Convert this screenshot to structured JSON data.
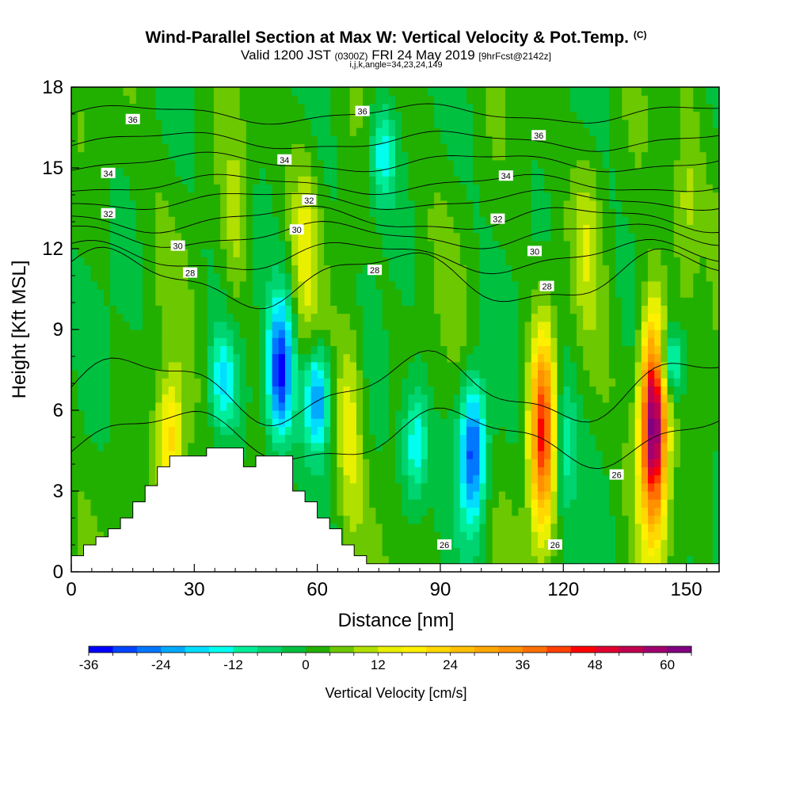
{
  "header": {
    "title": "Wind-Parallel Section at Max W: Vertical Velocity & Pot.Temp.",
    "title_mark": "(C)",
    "valid_prefix": "Valid 1200 JST",
    "valid_zulu": "(0300Z)",
    "valid_date": "FRI 24 May 2019",
    "forecast_note": "[9hrFcst@2142z]",
    "indices": "i,j,k,angle=34,23,24,149"
  },
  "chart_data": {
    "type": "heatmap",
    "xlabel": "Distance [nm]",
    "ylabel": "Height [Kft MSL]",
    "xlim": [
      0,
      158
    ],
    "ylim": [
      0,
      18
    ],
    "x_ticks": [
      "0",
      "30",
      "60",
      "90",
      "120",
      "150"
    ],
    "y_ticks": [
      "0",
      "3",
      "6",
      "9",
      "12",
      "15",
      "18"
    ],
    "colorbar": {
      "label": "Vertical Velocity [cm/s]",
      "range": [
        -36,
        64
      ],
      "step": 4,
      "tick_labels": [
        "-36",
        "-24",
        "-12",
        "0",
        "12",
        "24",
        "36",
        "48",
        "60"
      ],
      "colors": [
        "#0000ff",
        "#0044ff",
        "#0077ff",
        "#00aaff",
        "#00ddff",
        "#00ffee",
        "#00ee99",
        "#00d470",
        "#00c040",
        "#22b000",
        "#6cc800",
        "#b0e000",
        "#e8f000",
        "#fff000",
        "#ffd800",
        "#ffc000",
        "#ffa800",
        "#ff9000",
        "#ff7000",
        "#ff4000",
        "#ff0000",
        "#e00030",
        "#c00050",
        "#a00070",
        "#800080"
      ]
    },
    "updrafts": [
      {
        "x": 24,
        "bottom": 1.6,
        "top": 7.8,
        "peak": 22
      },
      {
        "x": 68,
        "bottom": 0.4,
        "top": 11.0,
        "peak": 12
      },
      {
        "x": 115,
        "bottom": 0.4,
        "top": 10.0,
        "peak": 44
      },
      {
        "x": 142,
        "bottom": 0.6,
        "top": 10.5,
        "peak": 64
      },
      {
        "x": 40,
        "bottom": 8.0,
        "top": 18.0,
        "peak": 8
      },
      {
        "x": 57,
        "bottom": 7.0,
        "top": 17.5,
        "peak": 9
      },
      {
        "x": 126,
        "bottom": 8.0,
        "top": 17.0,
        "peak": 7
      },
      {
        "x": 150,
        "bottom": 9.0,
        "top": 18.0,
        "peak": 9
      }
    ],
    "downdrafts": [
      {
        "x": 51,
        "bottom": 4.0,
        "top": 11.0,
        "peak": -36
      },
      {
        "x": 60,
        "bottom": 4.0,
        "top": 9.0,
        "peak": -28
      },
      {
        "x": 98,
        "bottom": 1.0,
        "top": 8.0,
        "peak": -32
      },
      {
        "x": 84,
        "bottom": 2.0,
        "top": 7.5,
        "peak": -18
      },
      {
        "x": 120,
        "bottom": 1.0,
        "top": 8.5,
        "peak": -14
      },
      {
        "x": 37,
        "bottom": 4.5,
        "top": 9.5,
        "peak": -16
      },
      {
        "x": 146,
        "bottom": 6.0,
        "top": 9.5,
        "peak": -20
      },
      {
        "x": 76,
        "bottom": 13.0,
        "top": 18.0,
        "peak": -16
      }
    ],
    "terrain": [
      [
        0,
        0.6
      ],
      [
        3,
        0.6
      ],
      [
        3,
        1.0
      ],
      [
        6,
        1.0
      ],
      [
        6,
        1.3
      ],
      [
        9,
        1.3
      ],
      [
        9,
        1.6
      ],
      [
        12,
        1.6
      ],
      [
        12,
        2.0
      ],
      [
        15,
        2.0
      ],
      [
        15,
        2.6
      ],
      [
        18,
        2.6
      ],
      [
        18,
        3.2
      ],
      [
        21,
        3.2
      ],
      [
        21,
        3.9
      ],
      [
        24,
        3.9
      ],
      [
        24,
        4.3
      ],
      [
        33,
        4.3
      ],
      [
        33,
        4.6
      ],
      [
        42,
        4.6
      ],
      [
        42,
        3.9
      ],
      [
        45,
        3.9
      ],
      [
        45,
        4.3
      ],
      [
        54,
        4.3
      ],
      [
        54,
        3.0
      ],
      [
        57,
        3.0
      ],
      [
        57,
        2.6
      ],
      [
        60,
        2.6
      ],
      [
        60,
        2.0
      ],
      [
        63,
        2.0
      ],
      [
        63,
        1.6
      ],
      [
        66,
        1.6
      ],
      [
        66,
        1.0
      ],
      [
        69,
        1.0
      ],
      [
        69,
        0.6
      ],
      [
        72,
        0.6
      ],
      [
        72,
        0.3
      ],
      [
        158,
        0.3
      ]
    ],
    "theta_levels": [
      {
        "value": 26,
        "base": 5.0,
        "amp": 0.9
      },
      {
        "value": 27,
        "base": 6.8,
        "amp": 1.1
      },
      {
        "value": 28,
        "base": 10.9,
        "amp": 0.9
      },
      {
        "value": 29,
        "base": 11.7,
        "amp": 0.5
      },
      {
        "value": 30,
        "base": 12.5,
        "amp": 0.4
      },
      {
        "value": 31,
        "base": 13.1,
        "amp": 0.4
      },
      {
        "value": 32,
        "base": 13.8,
        "amp": 0.3
      },
      {
        "value": 33,
        "base": 14.4,
        "amp": 0.3
      },
      {
        "value": 34,
        "base": 15.2,
        "amp": 0.3
      },
      {
        "value": 35,
        "base": 16.0,
        "amp": 0.3
      },
      {
        "value": 36,
        "base": 17.0,
        "amp": 0.3
      }
    ],
    "contour_labels": [
      {
        "text": "36",
        "x": 15,
        "y": 16.8
      },
      {
        "text": "36",
        "x": 71,
        "y": 17.1
      },
      {
        "text": "36",
        "x": 114,
        "y": 16.2
      },
      {
        "text": "34",
        "x": 9,
        "y": 14.8
      },
      {
        "text": "34",
        "x": 52,
        "y": 15.3
      },
      {
        "text": "34",
        "x": 106,
        "y": 14.7
      },
      {
        "text": "32",
        "x": 9,
        "y": 13.3
      },
      {
        "text": "32",
        "x": 58,
        "y": 13.8
      },
      {
        "text": "32",
        "x": 104,
        "y": 13.1
      },
      {
        "text": "30",
        "x": 26,
        "y": 12.1
      },
      {
        "text": "30",
        "x": 55,
        "y": 12.7
      },
      {
        "text": "30",
        "x": 113,
        "y": 11.9
      },
      {
        "text": "28",
        "x": 29,
        "y": 11.1
      },
      {
        "text": "28",
        "x": 74,
        "y": 11.2
      },
      {
        "text": "28",
        "x": 116,
        "y": 10.6
      },
      {
        "text": "26",
        "x": 91,
        "y": 1.0
      },
      {
        "text": "26",
        "x": 118,
        "y": 1.0
      },
      {
        "text": "26",
        "x": 133,
        "y": 3.6
      }
    ]
  }
}
